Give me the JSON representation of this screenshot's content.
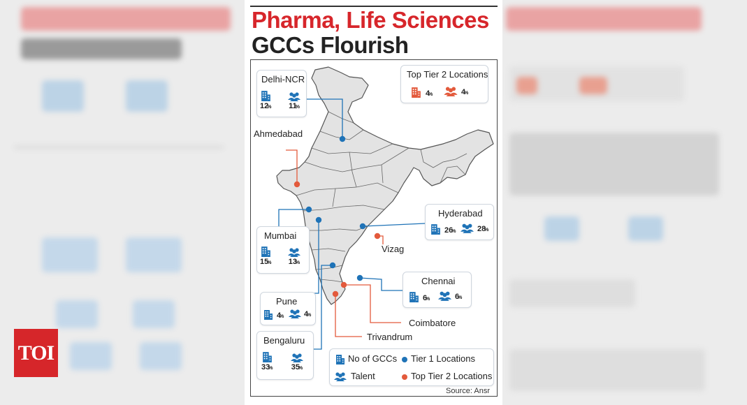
{
  "brand": {
    "logo_text": "TOI"
  },
  "headline": {
    "line1": "Pharma, Life Sciences",
    "line2": "GCCs Flourish"
  },
  "colors": {
    "tier1": "#1f73b7",
    "tier2": "#e35a3c",
    "headline_red": "#d7262b",
    "map_fill": "#e3e3e3"
  },
  "tier1_locations": [
    {
      "name": "Delhi-NCR",
      "gccs": "12",
      "talent": "11",
      "unit": "%"
    },
    {
      "name": "Mumbai",
      "gccs": "15",
      "talent": "13",
      "unit": "%"
    },
    {
      "name": "Pune",
      "gccs": "4",
      "talent": "4",
      "unit": "%"
    },
    {
      "name": "Bengaluru",
      "gccs": "33",
      "talent": "35",
      "unit": "%"
    },
    {
      "name": "Hyderabad",
      "gccs": "26",
      "talent": "28",
      "unit": "%"
    },
    {
      "name": "Chennai",
      "gccs": "6",
      "talent": "6",
      "unit": "%"
    }
  ],
  "tier2_box": {
    "title": "Top Tier 2 Locations",
    "gccs": "4",
    "talent": "4",
    "unit": "%"
  },
  "tier2_locations": [
    "Ahmedabad",
    "Vizag",
    "Coimbatore",
    "Trivandrum"
  ],
  "legend": {
    "gccs": "No of GCCs",
    "talent": "Talent",
    "tier1": "Tier 1 Locations",
    "tier2": "Top Tier 2 Locations"
  },
  "source": "Source: Ansr",
  "icons": [
    "building-icon",
    "people-icon",
    "tier1-dot-icon",
    "tier2-dot-icon"
  ]
}
